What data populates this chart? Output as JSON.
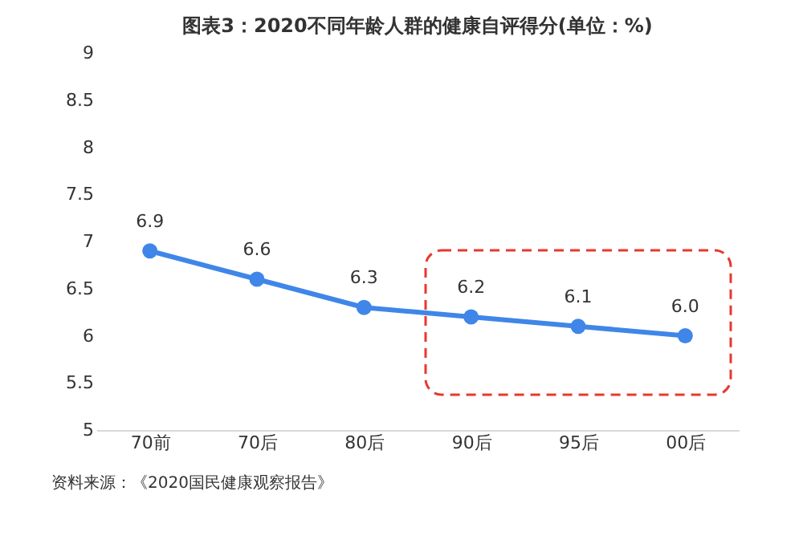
{
  "chart_data": {
    "type": "line",
    "title": "图表3：2020不同年龄人群的健康自评得分(单位：%)",
    "categories": [
      "70前",
      "70后",
      "80后",
      "90后",
      "95后",
      "00后"
    ],
    "series": [
      {
        "color": "#3f86e8",
        "values": [
          6.9,
          6.6,
          6.3,
          6.2,
          6.1,
          6.0
        ]
      }
    ],
    "value_labels": [
      "6.9",
      "6.6",
      "6.3",
      "6.2",
      "6.1",
      "6.0"
    ],
    "ylim": [
      5,
      9
    ],
    "yticks": [
      5,
      5.5,
      6,
      6.5,
      7,
      7.5,
      8,
      8.5,
      9
    ],
    "grid": false,
    "marker": "circle",
    "line_style": "solid",
    "annotations": [
      "资料来源：《2020国民健康观察报告》"
    ]
  }
}
